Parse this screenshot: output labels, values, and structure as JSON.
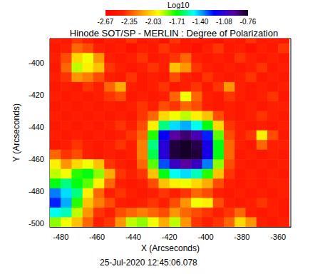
{
  "chart_data": {
    "type": "heatmap",
    "title": "Hinode SOT/SP - MERLIN : Degree of Polarization",
    "subtitle": "25-Jul-2020 12:45:06.078",
    "x_label": "X (Arcseconds)",
    "y_label": "Y (Arcseconds)",
    "xlim": [
      -486,
      -353
    ],
    "ylim": [
      -502,
      -385
    ],
    "xticks": [
      -480,
      -460,
      -440,
      -420,
      -400,
      -380,
      -360
    ],
    "yticks": [
      -500,
      -480,
      -460,
      -440,
      -420,
      -400
    ],
    "x": [
      -483,
      -477,
      -471,
      -465,
      -459,
      -453,
      -447,
      -441,
      -435,
      -429,
      -423,
      -417,
      -411,
      -405,
      -399,
      -393,
      -387,
      -381,
      -375,
      -369,
      -363,
      -357
    ],
    "y": [
      -385,
      -391,
      -397,
      -403,
      -409,
      -415,
      -421,
      -427,
      -433,
      -439,
      -445,
      -451,
      -457,
      -463,
      -469,
      -475,
      -481,
      -487,
      -493,
      -499
    ],
    "values": [
      [
        -2.45,
        -2.5,
        -2.4,
        -2.45,
        -2.55,
        -2.45,
        -2.5,
        -2.4,
        -2.5,
        -2.45,
        -2.55,
        -2.4,
        -2.5,
        -2.45,
        -2.5,
        -2.55,
        -2.45,
        -2.5,
        -2.4,
        -2.5,
        -2.45,
        -2.5
      ],
      [
        -2.5,
        -2.45,
        -2.3,
        -2.35,
        -2.45,
        -2.5,
        -2.45,
        -2.55,
        -2.45,
        -2.5,
        -2.4,
        -2.45,
        -2.5,
        -2.55,
        -2.45,
        -2.4,
        -2.5,
        -2.45,
        -2.55,
        -2.45,
        -2.5,
        -2.4
      ],
      [
        -2.45,
        -2.35,
        -2.05,
        -1.95,
        -2.2,
        -2.45,
        -2.5,
        -2.45,
        -2.4,
        -2.5,
        -2.45,
        -2.4,
        -2.3,
        -2.45,
        -2.5,
        -2.45,
        -2.5,
        -2.4,
        -2.45,
        -2.5,
        -2.45,
        -2.5
      ],
      [
        -2.5,
        -2.3,
        -1.9,
        -2.0,
        -2.1,
        -2.4,
        -2.45,
        -2.5,
        -2.45,
        -2.4,
        -2.45,
        -2.1,
        -2.2,
        -2.4,
        -2.45,
        -2.5,
        -2.45,
        -2.5,
        -2.45,
        -2.4,
        -2.5,
        -2.45
      ],
      [
        -2.45,
        -2.4,
        -2.2,
        -2.25,
        -2.35,
        -2.45,
        -2.5,
        -2.4,
        -2.5,
        -2.45,
        -2.5,
        -2.35,
        -2.45,
        -2.5,
        -2.4,
        -2.45,
        -2.5,
        -2.45,
        -2.4,
        -2.5,
        -2.45,
        -2.5
      ],
      [
        -2.5,
        -2.45,
        -2.5,
        -2.4,
        -2.45,
        -2.3,
        -2.15,
        -2.45,
        -2.5,
        -2.45,
        -2.4,
        -2.5,
        -2.45,
        -2.4,
        -2.5,
        -2.4,
        -2.2,
        -2.45,
        -2.5,
        -2.45,
        -2.5,
        -2.45
      ],
      [
        -2.45,
        -2.5,
        -2.45,
        -2.5,
        -2.45,
        -2.4,
        -2.35,
        -2.5,
        -2.45,
        -2.5,
        -2.45,
        -2.3,
        -1.95,
        -2.3,
        -2.45,
        -2.5,
        -2.4,
        -2.45,
        -2.5,
        -2.45,
        -2.4,
        -2.5
      ],
      [
        -2.5,
        -2.45,
        -2.5,
        -2.45,
        -2.5,
        -2.45,
        -2.5,
        -2.45,
        -2.4,
        -2.45,
        -2.35,
        -2.4,
        -2.3,
        -2.35,
        -2.45,
        -2.5,
        -2.45,
        -2.5,
        -2.45,
        -2.5,
        -2.45,
        -2.45
      ],
      [
        -2.45,
        -2.5,
        -2.45,
        -2.5,
        -2.45,
        -2.5,
        -2.45,
        -2.5,
        -2.4,
        -2.3,
        -2.05,
        -1.95,
        -1.9,
        -2.0,
        -2.1,
        -2.35,
        -2.45,
        -2.5,
        -2.45,
        -2.4,
        -2.45,
        -2.5
      ],
      [
        -2.5,
        -2.45,
        -2.5,
        -2.45,
        -2.5,
        -2.45,
        -2.4,
        -2.45,
        -2.35,
        -2.0,
        -1.6,
        -1.45,
        -1.4,
        -1.5,
        -1.7,
        -2.05,
        -2.4,
        -2.45,
        -2.5,
        -2.45,
        -2.5,
        -2.45
      ],
      [
        -2.45,
        -2.5,
        -2.45,
        -2.5,
        -2.45,
        -2.5,
        -2.45,
        -2.4,
        -2.3,
        -1.75,
        -1.2,
        -0.95,
        -0.88,
        -1.0,
        -1.25,
        -1.8,
        -2.35,
        -2.45,
        -2.4,
        -2.0,
        -2.35,
        -2.5
      ],
      [
        -2.5,
        -2.45,
        -2.4,
        -2.45,
        -2.5,
        -2.45,
        -2.4,
        -2.45,
        -2.25,
        -1.6,
        -1.1,
        -0.8,
        -0.77,
        -0.82,
        -1.15,
        -1.7,
        -2.3,
        -2.45,
        -2.5,
        -2.3,
        -2.45,
        -2.45
      ],
      [
        -2.3,
        -2.4,
        -2.35,
        -2.45,
        -2.5,
        -2.45,
        -2.5,
        -2.45,
        -2.25,
        -1.65,
        -1.1,
        -0.8,
        -0.77,
        -0.8,
        -1.15,
        -1.7,
        -2.3,
        -2.5,
        -2.45,
        -2.5,
        -2.45,
        -2.5
      ],
      [
        -2.0,
        -2.2,
        -2.05,
        -1.95,
        -2.1,
        -2.4,
        -2.45,
        -2.5,
        -2.3,
        -1.8,
        -1.3,
        -1.05,
        -0.95,
        -1.05,
        -1.35,
        -1.85,
        -2.35,
        -2.45,
        -2.5,
        -2.45,
        -2.5,
        -2.45
      ],
      [
        -1.9,
        -1.95,
        -1.75,
        -1.7,
        -1.85,
        -2.15,
        -2.4,
        -2.45,
        -2.4,
        -2.1,
        -1.7,
        -1.5,
        -1.45,
        -1.55,
        -1.75,
        -2.1,
        -2.4,
        -2.5,
        -2.45,
        -2.5,
        -2.45,
        -2.5
      ],
      [
        -1.7,
        -1.6,
        -1.7,
        -1.8,
        -2.0,
        -2.3,
        -2.45,
        -2.5,
        -2.45,
        -2.35,
        -2.1,
        -2.0,
        -1.95,
        -2.05,
        -2.15,
        -2.35,
        -2.45,
        -2.5,
        -2.45,
        -2.5,
        -2.45,
        -2.45
      ],
      [
        -1.35,
        -1.45,
        -1.6,
        -2.0,
        -2.3,
        -2.45,
        -2.4,
        -2.45,
        -2.5,
        -2.45,
        -2.4,
        -2.45,
        -2.4,
        -2.3,
        -2.35,
        -2.45,
        -2.5,
        -2.45,
        -2.5,
        -2.45,
        -2.5,
        -2.45
      ],
      [
        -1.25,
        -1.4,
        -1.75,
        -2.1,
        -2.25,
        -2.35,
        -2.45,
        -2.5,
        -2.45,
        -2.4,
        -2.45,
        -2.35,
        -2.2,
        -1.95,
        -2.0,
        -2.35,
        -2.45,
        -2.5,
        -2.45,
        -2.4,
        -2.45,
        -2.5
      ],
      [
        -1.5,
        -1.55,
        -1.9,
        -2.2,
        -2.4,
        -2.45,
        -2.35,
        -2.3,
        -2.25,
        -2.3,
        -2.35,
        -2.2,
        -2.3,
        -2.35,
        -2.4,
        -2.45,
        -2.4,
        -2.3,
        -2.45,
        -2.5,
        -2.45,
        -2.5
      ],
      [
        -1.85,
        -1.95,
        -2.1,
        -2.3,
        -2.45,
        -2.4,
        -2.2,
        -1.9,
        -1.85,
        -1.95,
        -2.15,
        -1.9,
        -2.2,
        -2.4,
        -2.45,
        -2.4,
        -2.3,
        -2.05,
        -2.2,
        -2.45,
        -2.5,
        -2.45
      ]
    ],
    "colorbar": {
      "label": "Log10",
      "range": [
        -2.67,
        -0.76
      ],
      "ticks": [
        -2.67,
        -2.35,
        -2.03,
        -1.71,
        {
          "value": -1.4,
          "label": "-1.40"
        },
        -1.08,
        -0.76
      ]
    }
  }
}
